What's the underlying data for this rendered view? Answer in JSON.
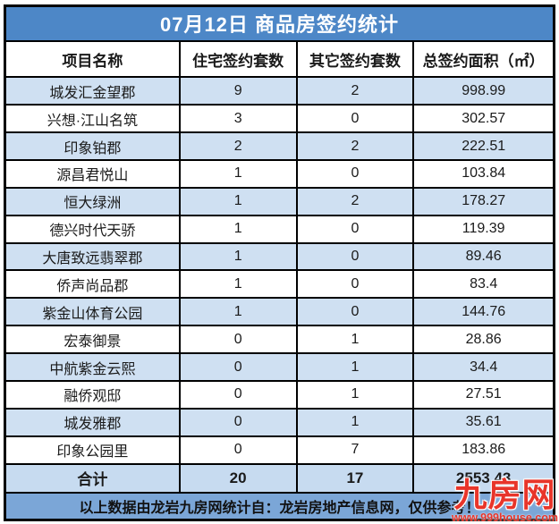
{
  "chart_data": {
    "type": "table",
    "title": "07月12日 商品房签约统计",
    "columns": [
      "项目名称",
      "住宅签约套数",
      "其它签约套数",
      "总签约面积（㎡）"
    ],
    "rows": [
      [
        "城发汇金望郡",
        "9",
        "2",
        "998.99"
      ],
      [
        "兴想·江山名筑",
        "3",
        "0",
        "302.57"
      ],
      [
        "印象铂郡",
        "2",
        "2",
        "222.51"
      ],
      [
        "源昌君悦山",
        "1",
        "0",
        "103.84"
      ],
      [
        "恒大绿洲",
        "1",
        "2",
        "178.27"
      ],
      [
        "德兴时代天骄",
        "1",
        "0",
        "119.39"
      ],
      [
        "大唐致远翡翠郡",
        "1",
        "0",
        "89.46"
      ],
      [
        "侨声尚品郡",
        "1",
        "0",
        "83.4"
      ],
      [
        "紫金山体育公园",
        "1",
        "0",
        "144.76"
      ],
      [
        "宏泰御景",
        "0",
        "1",
        "28.86"
      ],
      [
        "中航紫金云熙",
        "0",
        "1",
        "34.4"
      ],
      [
        "融侨观邸",
        "0",
        "1",
        "27.51"
      ],
      [
        "城发雅郡",
        "0",
        "1",
        "35.61"
      ],
      [
        "印象公园里",
        "0",
        "7",
        "183.86"
      ]
    ],
    "total": {
      "label": "合计",
      "residential": "20",
      "other": "17",
      "area": "2553.43"
    }
  },
  "footer": {
    "note": "以上数据由龙岩九房网统计自：龙岩房地产信息网，仅供参考！"
  },
  "watermark": {
    "brand": "九房网",
    "url": "www.999house.com"
  },
  "colors": {
    "title_bar": "#4d87c7",
    "row_alt": "#cfe0f2",
    "total_row": "#c7dbf0",
    "footer_bar": "#7ba6d7",
    "border": "#000000",
    "watermark": "#e8352a"
  }
}
